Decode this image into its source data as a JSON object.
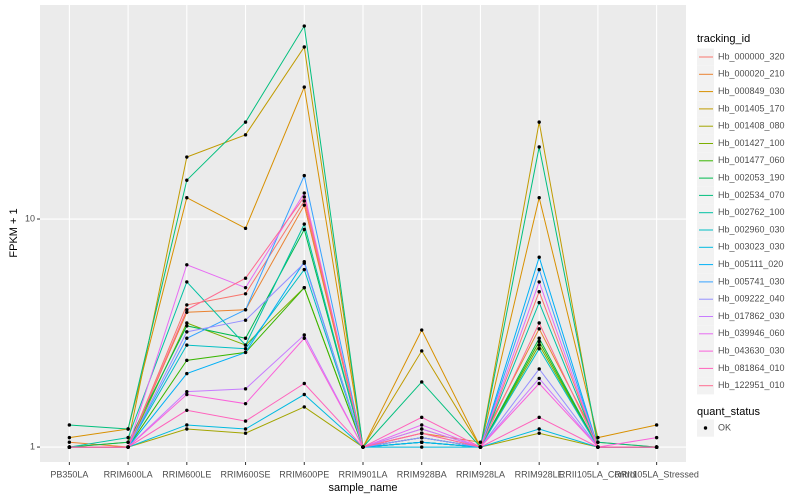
{
  "chart_data": {
    "type": "line",
    "x_label": "sample_name",
    "y_label": "FPKM + 1",
    "log_y": true,
    "grid": true,
    "ylim": [
      0.86,
      86.8
    ],
    "yticks": [
      1,
      10
    ],
    "legend_title": "tracking_id",
    "shape_legend": {
      "title": "quant_status",
      "labels": [
        "OK"
      ]
    },
    "point_color": "#000000",
    "categories": [
      "PB350LA",
      "RRIM600LA",
      "RRIM600LE",
      "RRIM600SE",
      "RRIM600PE",
      "RRIM901LA",
      "RRIM928BA",
      "RRIM928LA",
      "RRIM928LE",
      "RRII105LA_Control",
      "RRII105LA_Stressed"
    ],
    "series": [
      {
        "name": "Hb_000000_320",
        "color": "#F8766D",
        "values": [
          1.0,
          1.0,
          4.2,
          4.7,
          12.0,
          1.0,
          1.2,
          1.0,
          4.8,
          1.0,
          1.0
        ]
      },
      {
        "name": "Hb_000020_210",
        "color": "#EA8331",
        "values": [
          1.05,
          1.0,
          3.9,
          4.0,
          11.5,
          1.0,
          1.15,
          1.05,
          3.3,
          1.05,
          1.0
        ]
      },
      {
        "name": "Hb_000849_030",
        "color": "#D89000",
        "values": [
          1.1,
          1.2,
          12.4,
          9.1,
          37.9,
          1.0,
          3.26,
          1.0,
          12.4,
          1.1,
          1.25
        ]
      },
      {
        "name": "Hb_001405_170",
        "color": "#C09B00",
        "values": [
          1.0,
          1.05,
          18.7,
          23.4,
          56.8,
          1.0,
          2.64,
          1.0,
          26.6,
          1.0,
          1.0
        ]
      },
      {
        "name": "Hb_001408_080",
        "color": "#A3A500",
        "values": [
          1.0,
          1.0,
          1.2,
          1.15,
          1.5,
          1.0,
          1.05,
          1.0,
          1.15,
          1.0,
          1.0
        ]
      },
      {
        "name": "Hb_001427_100",
        "color": "#7CAE00",
        "values": [
          1.0,
          1.0,
          3.5,
          2.8,
          5.0,
          1.0,
          1.1,
          1.0,
          2.8,
          1.0,
          1.0
        ]
      },
      {
        "name": "Hb_001477_060",
        "color": "#39B600",
        "values": [
          1.0,
          1.0,
          2.4,
          2.6,
          5.0,
          1.0,
          1.1,
          1.0,
          2.9,
          1.0,
          1.0
        ]
      },
      {
        "name": "Hb_002053_190",
        "color": "#00BB4E",
        "values": [
          1.0,
          1.05,
          3.4,
          3.0,
          9.0,
          1.0,
          1.05,
          1.0,
          3.0,
          1.0,
          1.0
        ]
      },
      {
        "name": "Hb_002534_070",
        "color": "#00BF7D",
        "values": [
          1.25,
          1.2,
          14.8,
          26.6,
          70.2,
          1.0,
          1.93,
          1.0,
          20.7,
          1.05,
          1.0
        ]
      },
      {
        "name": "Hb_002762_100",
        "color": "#00C1A3",
        "values": [
          1.0,
          1.1,
          5.3,
          2.8,
          9.5,
          1.0,
          1.05,
          1.0,
          4.3,
          1.0,
          1.0
        ]
      },
      {
        "name": "Hb_002960_030",
        "color": "#00BFC4",
        "values": [
          1.0,
          1.0,
          2.8,
          2.7,
          6.0,
          1.0,
          1.05,
          1.0,
          2.7,
          1.0,
          1.0
        ]
      },
      {
        "name": "Hb_003023_030",
        "color": "#00BAE0",
        "values": [
          1.0,
          1.0,
          1.25,
          1.2,
          1.7,
          1.0,
          1.0,
          1.0,
          1.2,
          1.0,
          1.0
        ]
      },
      {
        "name": "Hb_005111_020",
        "color": "#00B0F6",
        "values": [
          1.0,
          1.0,
          2.1,
          2.6,
          6.5,
          1.0,
          1.05,
          1.0,
          6.8,
          1.0,
          1.0
        ]
      },
      {
        "name": "Hb_005741_030",
        "color": "#35A2FF",
        "values": [
          1.0,
          1.0,
          3.0,
          4.0,
          15.5,
          1.0,
          1.1,
          1.0,
          6.0,
          1.0,
          1.0
        ]
      },
      {
        "name": "Hb_009222_040",
        "color": "#9590FF",
        "values": [
          1.0,
          1.0,
          3.2,
          3.6,
          6.4,
          1.0,
          1.1,
          1.0,
          2.2,
          1.0,
          1.0
        ]
      },
      {
        "name": "Hb_017862_030",
        "color": "#C77CFF",
        "values": [
          1.0,
          1.0,
          1.75,
          1.8,
          3.1,
          1.0,
          1.2,
          1.0,
          2.0,
          1.0,
          1.0
        ]
      },
      {
        "name": "Hb_039946_060",
        "color": "#E76BF3",
        "values": [
          1.0,
          1.0,
          6.3,
          5.0,
          13.0,
          1.0,
          1.25,
          1.0,
          5.3,
          1.0,
          1.0
        ]
      },
      {
        "name": "Hb_043630_030",
        "color": "#FA62DB",
        "values": [
          1.0,
          1.0,
          1.7,
          1.55,
          3.0,
          1.0,
          1.15,
          1.0,
          1.9,
          1.0,
          1.1
        ]
      },
      {
        "name": "Hb_081864_010",
        "color": "#FF62BC",
        "values": [
          1.0,
          1.0,
          1.45,
          1.3,
          1.9,
          1.0,
          1.35,
          1.0,
          1.35,
          1.0,
          1.0
        ]
      },
      {
        "name": "Hb_122951_010",
        "color": "#FF6C91",
        "values": [
          1.0,
          1.0,
          4.0,
          5.5,
          12.5,
          1.0,
          1.15,
          1.0,
          3.5,
          1.0,
          1.0
        ]
      }
    ]
  }
}
